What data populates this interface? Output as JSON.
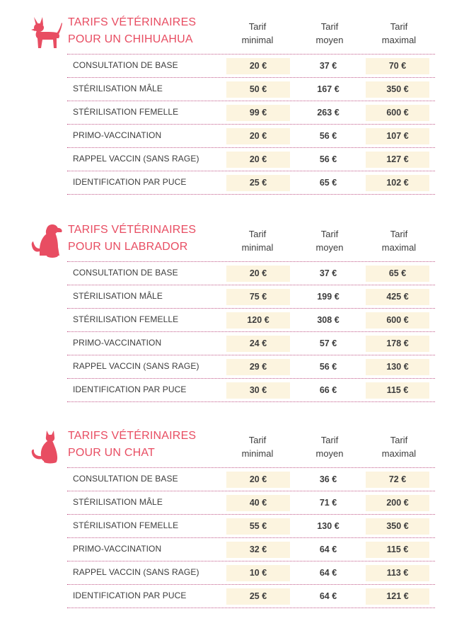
{
  "columns": [
    {
      "line1": "Tarif",
      "line2": "minimal"
    },
    {
      "line1": "Tarif",
      "line2": "moyen"
    },
    {
      "line1": "Tarif",
      "line2": "maximal"
    }
  ],
  "accent_color": "#e84d62",
  "sections": [
    {
      "icon": "dog-small-icon",
      "title_line1": "TARIFS VÉTÉRINAIRES",
      "title_line2": "POUR UN CHIHUAHUA",
      "rows": [
        {
          "label": "CONSULTATION DE BASE",
          "min": "20 €",
          "avg": "37 €",
          "max": "70 €"
        },
        {
          "label": "STÉRILISATION MÂLE",
          "min": "50 €",
          "avg": "167 €",
          "max": "350 €"
        },
        {
          "label": "STÉRILISATION FEMELLE",
          "min": "99 €",
          "avg": "263 €",
          "max": "600 €"
        },
        {
          "label": "PRIMO-VACCINATION",
          "min": "20 €",
          "avg": "56 €",
          "max": "107 €"
        },
        {
          "label": "RAPPEL VACCIN (SANS RAGE)",
          "min": "20 €",
          "avg": "56 €",
          "max": "127 €"
        },
        {
          "label": "IDENTIFICATION PAR PUCE",
          "min": "25 €",
          "avg": "65 €",
          "max": "102 €"
        }
      ]
    },
    {
      "icon": "dog-sitting-icon",
      "title_line1": "TARIFS VÉTÉRINAIRES",
      "title_line2": "POUR UN LABRADOR",
      "rows": [
        {
          "label": "CONSULTATION DE BASE",
          "min": "20 €",
          "avg": "37 €",
          "max": "65 €"
        },
        {
          "label": "STÉRILISATION MÂLE",
          "min": "75 €",
          "avg": "199 €",
          "max": "425 €"
        },
        {
          "label": "STÉRILISATION FEMELLE",
          "min": "120 €",
          "avg": "308 €",
          "max": "600 €"
        },
        {
          "label": "PRIMO-VACCINATION",
          "min": "24 €",
          "avg": "57 €",
          "max": "178 €"
        },
        {
          "label": "RAPPEL VACCIN (SANS RAGE)",
          "min": "29 €",
          "avg": "56 €",
          "max": "130 €"
        },
        {
          "label": "IDENTIFICATION PAR PUCE",
          "min": "30 €",
          "avg": "66 €",
          "max": "115 €"
        }
      ]
    },
    {
      "icon": "cat-icon",
      "title_line1": "TARIFS VÉTÉRINAIRES",
      "title_line2": "POUR UN CHAT",
      "rows": [
        {
          "label": "CONSULTATION DE BASE",
          "min": "20 €",
          "avg": "36 €",
          "max": "72 €"
        },
        {
          "label": "STÉRILISATION MÂLE",
          "min": "40 €",
          "avg": "71 €",
          "max": "200 €"
        },
        {
          "label": "STÉRILISATION FEMELLE",
          "min": "55 €",
          "avg": "130 €",
          "max": "350 €"
        },
        {
          "label": "PRIMO-VACCINATION",
          "min": "32 €",
          "avg": "64 €",
          "max": "115 €"
        },
        {
          "label": "RAPPEL VACCIN (SANS RAGE)",
          "min": "10 €",
          "avg": "64 €",
          "max": "113 €"
        },
        {
          "label": "IDENTIFICATION PAR PUCE",
          "min": "25 €",
          "avg": "64 €",
          "max": "121 €"
        }
      ]
    }
  ]
}
